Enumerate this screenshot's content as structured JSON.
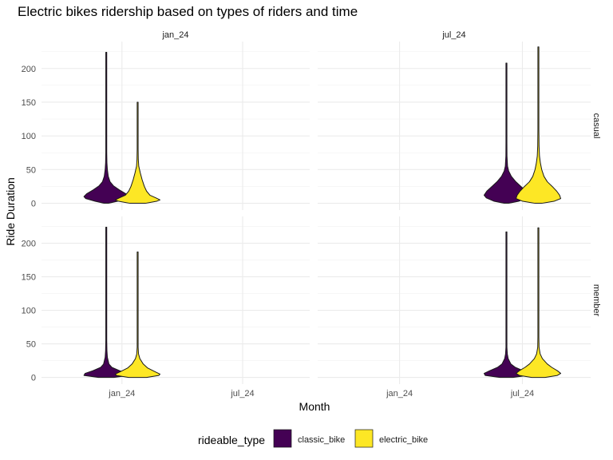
{
  "chart_data": {
    "type": "violin",
    "title": "Electric bikes ridership based on types of riders and time",
    "xlabel": "Month",
    "ylabel": "Ride Duration",
    "categories": [
      "jan_24",
      "jul_24"
    ],
    "ylim": [
      -10,
      240
    ],
    "yticks": [
      0,
      50,
      100,
      150,
      200
    ],
    "grid": true,
    "facet_columns": [
      "jan_24",
      "jul_24"
    ],
    "facet_rows": [
      "casual",
      "member"
    ],
    "legend": {
      "title": "rideable_type",
      "position": "bottom",
      "items": [
        {
          "name": "classic_bike",
          "color": "#440154"
        },
        {
          "name": "electric_bike",
          "color": "#fde725"
        }
      ]
    },
    "panels": [
      {
        "column": "jan_24",
        "row": "casual",
        "violins": [
          {
            "category": "jan_24",
            "series": "classic_bike",
            "min": 0,
            "max": 224,
            "profile": [
              [
                0,
                0.1
              ],
              [
                3,
                0.5
              ],
              [
                7,
                0.92
              ],
              [
                10,
                1.0
              ],
              [
                14,
                0.88
              ],
              [
                20,
                0.58
              ],
              [
                26,
                0.32
              ],
              [
                32,
                0.17
              ],
              [
                40,
                0.09
              ],
              [
                50,
                0.05
              ],
              [
                60,
                0.03
              ],
              [
                75,
                0.02
              ],
              [
                90,
                0.02
              ],
              [
                110,
                0.01
              ],
              [
                150,
                0.008
              ],
              [
                224,
                0.004
              ]
            ]
          },
          {
            "category": "jan_24",
            "series": "electric_bike",
            "min": 0,
            "max": 150,
            "profile": [
              [
                0,
                0.35
              ],
              [
                3,
                0.85
              ],
              [
                5,
                1.0
              ],
              [
                8,
                0.82
              ],
              [
                12,
                0.55
              ],
              [
                18,
                0.4
              ],
              [
                25,
                0.3
              ],
              [
                35,
                0.2
              ],
              [
                45,
                0.12
              ],
              [
                55,
                0.05
              ],
              [
                65,
                0.03
              ],
              [
                80,
                0.015
              ],
              [
                110,
                0.008
              ],
              [
                150,
                0.004
              ]
            ]
          }
        ]
      },
      {
        "column": "jul_24",
        "row": "casual",
        "violins": [
          {
            "category": "jul_24",
            "series": "classic_bike",
            "min": 0,
            "max": 208,
            "profile": [
              [
                0,
                0.1
              ],
              [
                3,
                0.55
              ],
              [
                8,
                0.9
              ],
              [
                12,
                1.0
              ],
              [
                18,
                0.88
              ],
              [
                25,
                0.65
              ],
              [
                32,
                0.42
              ],
              [
                40,
                0.22
              ],
              [
                48,
                0.1
              ],
              [
                55,
                0.05
              ],
              [
                70,
                0.025
              ],
              [
                90,
                0.015
              ],
              [
                120,
                0.008
              ],
              [
                208,
                0.004
              ]
            ]
          },
          {
            "category": "jul_24",
            "series": "electric_bike",
            "min": 0,
            "max": 232,
            "profile": [
              [
                0,
                0.15
              ],
              [
                3,
                0.7
              ],
              [
                7,
                1.0
              ],
              [
                12,
                0.95
              ],
              [
                18,
                0.82
              ],
              [
                25,
                0.62
              ],
              [
                32,
                0.4
              ],
              [
                40,
                0.25
              ],
              [
                50,
                0.15
              ],
              [
                60,
                0.09
              ],
              [
                70,
                0.05
              ],
              [
                85,
                0.03
              ],
              [
                110,
                0.015
              ],
              [
                150,
                0.008
              ],
              [
                232,
                0.004
              ]
            ]
          }
        ]
      },
      {
        "column": "jan_24",
        "row": "member",
        "violins": [
          {
            "category": "jan_24",
            "series": "classic_bike",
            "min": 0,
            "max": 224,
            "profile": [
              [
                0,
                0.35
              ],
              [
                3,
                1.0
              ],
              [
                6,
                0.95
              ],
              [
                10,
                0.6
              ],
              [
                15,
                0.25
              ],
              [
                20,
                0.12
              ],
              [
                30,
                0.05
              ],
              [
                40,
                0.03
              ],
              [
                55,
                0.015
              ],
              [
                80,
                0.01
              ],
              [
                120,
                0.006
              ],
              [
                224,
                0.003
              ]
            ]
          },
          {
            "category": "jan_24",
            "series": "electric_bike",
            "min": 0,
            "max": 187,
            "profile": [
              [
                0,
                0.4
              ],
              [
                3,
                0.95
              ],
              [
                5,
                1.0
              ],
              [
                9,
                0.75
              ],
              [
                14,
                0.45
              ],
              [
                20,
                0.25
              ],
              [
                28,
                0.1
              ],
              [
                35,
                0.04
              ],
              [
                45,
                0.02
              ],
              [
                70,
                0.01
              ],
              [
                110,
                0.006
              ],
              [
                187,
                0.003
              ]
            ]
          }
        ]
      },
      {
        "column": "jul_24",
        "row": "member",
        "violins": [
          {
            "category": "jul_24",
            "series": "classic_bike",
            "min": 0,
            "max": 217,
            "profile": [
              [
                0,
                0.3
              ],
              [
                3,
                0.95
              ],
              [
                6,
                1.0
              ],
              [
                10,
                0.75
              ],
              [
                15,
                0.4
              ],
              [
                20,
                0.2
              ],
              [
                28,
                0.08
              ],
              [
                35,
                0.04
              ],
              [
                45,
                0.02
              ],
              [
                70,
                0.01
              ],
              [
                120,
                0.006
              ],
              [
                217,
                0.003
              ]
            ]
          },
          {
            "category": "jul_24",
            "series": "electric_bike",
            "min": 0,
            "max": 223,
            "profile": [
              [
                0,
                0.3
              ],
              [
                3,
                0.85
              ],
              [
                6,
                1.0
              ],
              [
                10,
                0.85
              ],
              [
                15,
                0.6
              ],
              [
                20,
                0.4
              ],
              [
                28,
                0.18
              ],
              [
                35,
                0.08
              ],
              [
                45,
                0.03
              ],
              [
                60,
                0.015
              ],
              [
                90,
                0.008
              ],
              [
                140,
                0.005
              ],
              [
                223,
                0.003
              ]
            ]
          }
        ]
      }
    ]
  }
}
